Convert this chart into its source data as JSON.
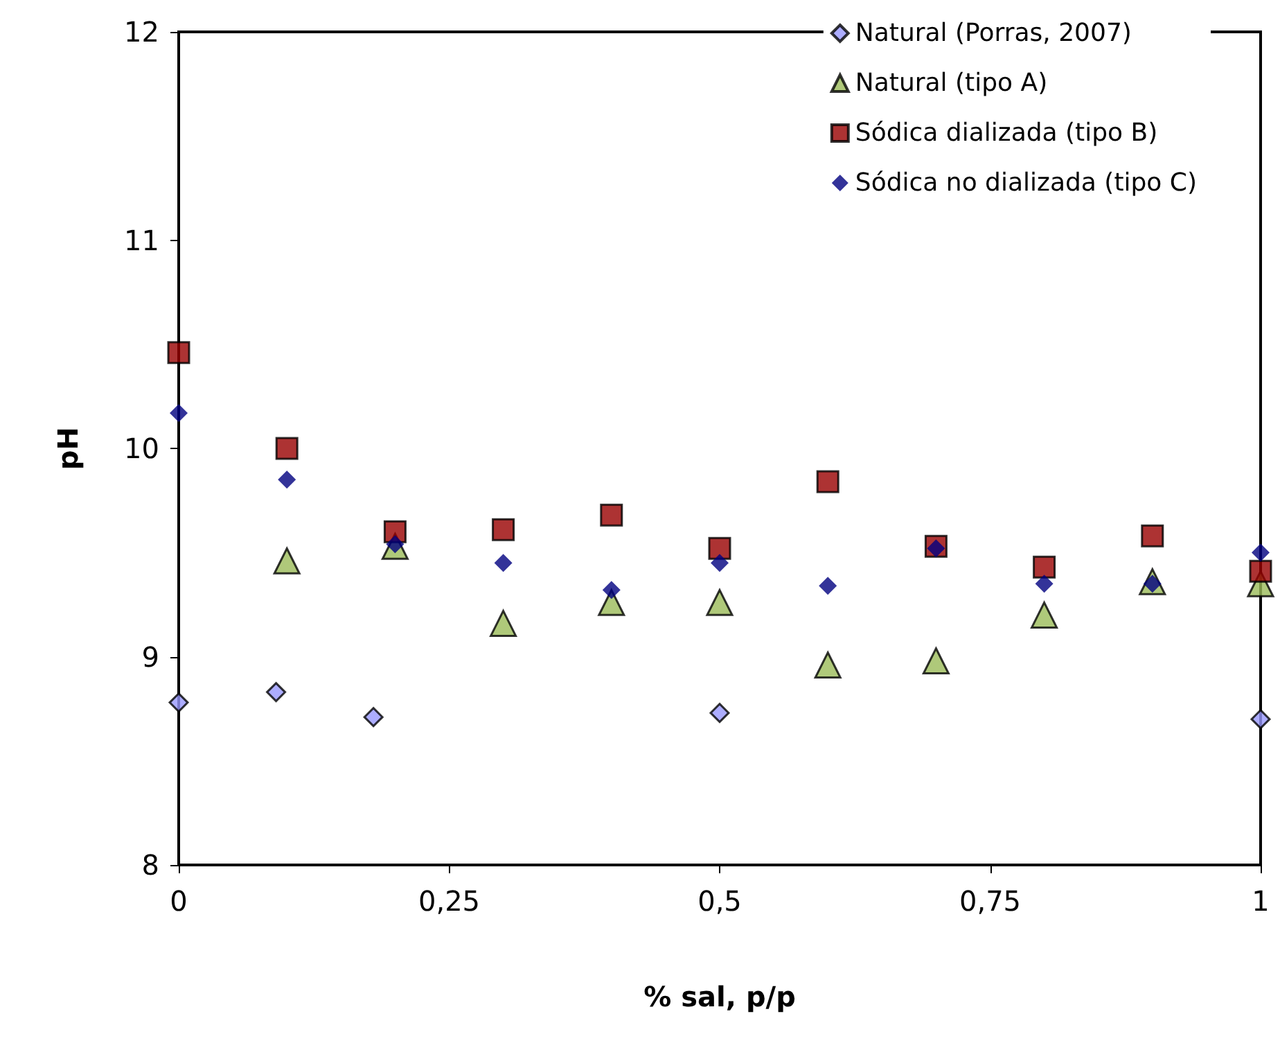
{
  "chart_data": {
    "type": "scatter",
    "xlabel": "% sal, p/p",
    "ylabel": "pH",
    "xlim": [
      0,
      1
    ],
    "ylim": [
      8,
      12
    ],
    "xticks": [
      0,
      {
        "value": 0.25,
        "label": "0,25"
      },
      {
        "value": 0.5,
        "label": "0,5"
      },
      {
        "value": 0.75,
        "label": "0,75"
      },
      1
    ],
    "yticks": [
      8,
      9,
      10,
      11,
      12
    ],
    "grid": false,
    "legend": "top right",
    "series": [
      {
        "name": "Natural (Porras, 2007)",
        "color": "#9999ff",
        "marker": "diamond",
        "x": [
          0,
          0.09,
          0.18,
          0.5,
          1
        ],
        "values": [
          8.78,
          8.83,
          8.71,
          8.73,
          8.7
        ]
      },
      {
        "name": "Natural (tipo A)",
        "color": "#9bbb59",
        "marker": "triangle",
        "x": [
          0.1,
          0.2,
          0.3,
          0.4,
          0.5,
          0.6,
          0.7,
          0.8,
          0.9,
          1
        ],
        "values": [
          9.46,
          9.53,
          9.16,
          9.26,
          9.26,
          8.96,
          8.98,
          9.2,
          9.36,
          9.35
        ]
      },
      {
        "name": "Sódica dializada (tipo B)",
        "color": "#990000",
        "marker": "square",
        "x": [
          0,
          0.1,
          0.2,
          0.3,
          0.4,
          0.5,
          0.6,
          0.7,
          0.8,
          0.9,
          1
        ],
        "values": [
          10.46,
          10.0,
          9.6,
          9.61,
          9.68,
          9.52,
          9.84,
          9.53,
          9.43,
          9.58,
          9.41
        ]
      },
      {
        "name": "Sódica no dializada (tipo C)",
        "color": "#000080",
        "marker": "diamond",
        "x": [
          0,
          0.1,
          0.2,
          0.3,
          0.4,
          0.5,
          0.6,
          0.7,
          0.8,
          0.9,
          1
        ],
        "values": [
          10.17,
          9.85,
          9.54,
          9.45,
          9.32,
          9.45,
          9.34,
          9.52,
          9.35,
          9.35,
          9.5
        ]
      }
    ]
  }
}
